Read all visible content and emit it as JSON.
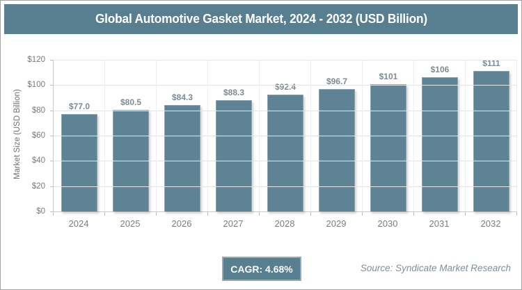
{
  "header": {
    "title": "Global Automotive Gasket Market, 2024 - 2032 (USD Billion)"
  },
  "chart_data": {
    "type": "bar",
    "title": "Global Automotive Gasket Market, 2024 - 2032 (USD Billion)",
    "categories": [
      "2024",
      "2025",
      "2026",
      "2027",
      "2028",
      "2029",
      "2030",
      "2031",
      "2032"
    ],
    "values": [
      77.0,
      80.5,
      84.3,
      88.3,
      92.4,
      96.7,
      101,
      106,
      111
    ],
    "value_labels": [
      "$77.0",
      "$80.5",
      "$84.3",
      "$88.3",
      "$92.4",
      "$96.7",
      "$101",
      "$106",
      "$111"
    ],
    "xlabel": "",
    "ylabel": "Market Size (USD Billion)",
    "ylim": [
      0,
      120
    ],
    "ytick_step": 20,
    "yticks": [
      "$0",
      "$20",
      "$40",
      "$60",
      "$80",
      "$100",
      "$120"
    ],
    "grid": true,
    "legend": false,
    "bar_color": "#5e8394"
  },
  "footer": {
    "cagr_label": "CAGR: 4.68%",
    "source": "Source: Syndicate Market Research"
  },
  "colors": {
    "accent": "#587f90",
    "bar": "#5e8394",
    "value_label": "#7e8b94",
    "grid": "#e5e5e5",
    "axis": "#c9c9c9"
  }
}
